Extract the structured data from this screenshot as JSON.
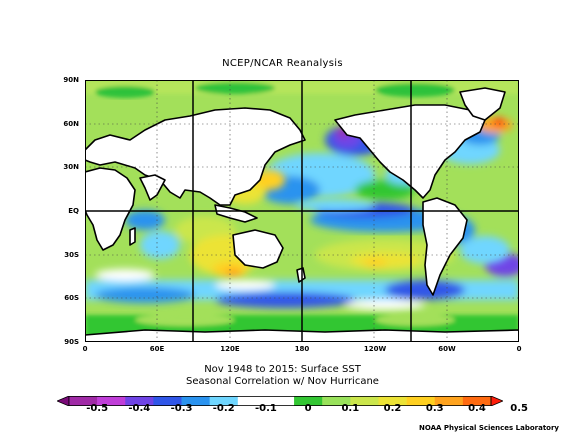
{
  "title": "NCEP/NCAR Reanalysis",
  "subtitle_line1": "Nov 1948 to 2015: Surface SST",
  "subtitle_line2": "Seasonal Correlation w/ Nov Hurricane",
  "credit": "NOAA Physical Sciences Laboratory",
  "lat_labels": [
    "90N",
    "60N",
    "30N",
    "EQ",
    "30S",
    "60S",
    "90S"
  ],
  "lon_labels": [
    "0",
    "60E",
    "120E",
    "180",
    "120W",
    "60W",
    "0"
  ],
  "colorbar": {
    "labels": [
      "-0.5",
      "-0.4",
      "-0.3",
      "-0.2",
      "-0.1",
      "0",
      "0.1",
      "0.2",
      "0.3",
      "0.4",
      "0.5"
    ],
    "colors": [
      "#7a0a78",
      "#a02aa6",
      "#c03ed8",
      "#6f44e6",
      "#3056e8",
      "#2a93ef",
      "#6fd6ff",
      "#ffffff",
      "#ffffff",
      "#33c633",
      "#99e25b",
      "#cbe64c",
      "#ece336",
      "#ffd021",
      "#ffa31e",
      "#ff6a10",
      "#ff1d0a"
    ]
  },
  "map": {
    "land_color": "#ffffff",
    "background_color": "#a3e05a"
  }
}
